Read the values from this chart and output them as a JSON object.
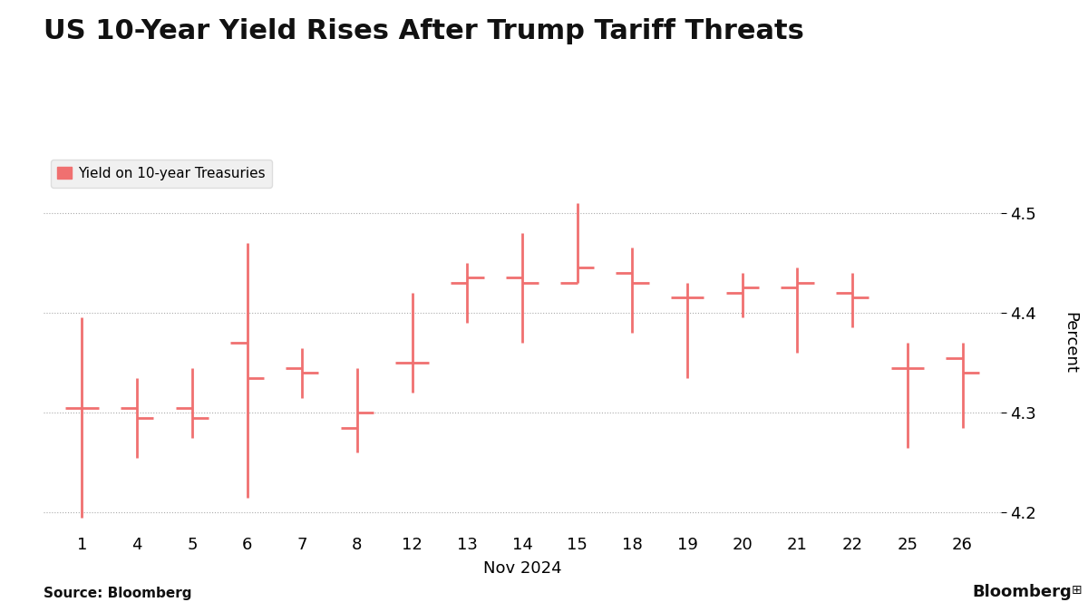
{
  "title": "US 10-Year Yield Rises After Trump Tariff Threats",
  "legend_label": "Yield on 10-year Treasuries",
  "xlabel": "Nov 2024",
  "ylabel": "Percent",
  "ylim": [
    4.18,
    4.56
  ],
  "yticks": [
    4.2,
    4.3,
    4.4,
    4.5
  ],
  "source": "Source: Bloomberg",
  "color": "#f07070",
  "background": "#ffffff",
  "days": [
    1,
    4,
    5,
    6,
    7,
    8,
    12,
    13,
    14,
    15,
    18,
    19,
    20,
    21,
    22,
    25,
    26
  ],
  "open": [
    4.305,
    4.305,
    4.305,
    4.37,
    4.345,
    4.285,
    4.35,
    4.43,
    4.435,
    4.43,
    4.44,
    4.415,
    4.42,
    4.425,
    4.42,
    4.345,
    4.355
  ],
  "high": [
    4.395,
    4.335,
    4.345,
    4.47,
    4.365,
    4.345,
    4.42,
    4.45,
    4.48,
    4.51,
    4.465,
    4.43,
    4.44,
    4.445,
    4.44,
    4.37,
    4.37
  ],
  "low": [
    4.195,
    4.255,
    4.275,
    4.215,
    4.315,
    4.26,
    4.32,
    4.39,
    4.37,
    4.43,
    4.38,
    4.335,
    4.395,
    4.36,
    4.385,
    4.265,
    4.285
  ],
  "close": [
    4.305,
    4.295,
    4.295,
    4.335,
    4.34,
    4.3,
    4.35,
    4.435,
    4.43,
    4.445,
    4.43,
    4.415,
    4.425,
    4.43,
    4.415,
    4.345,
    4.34
  ]
}
